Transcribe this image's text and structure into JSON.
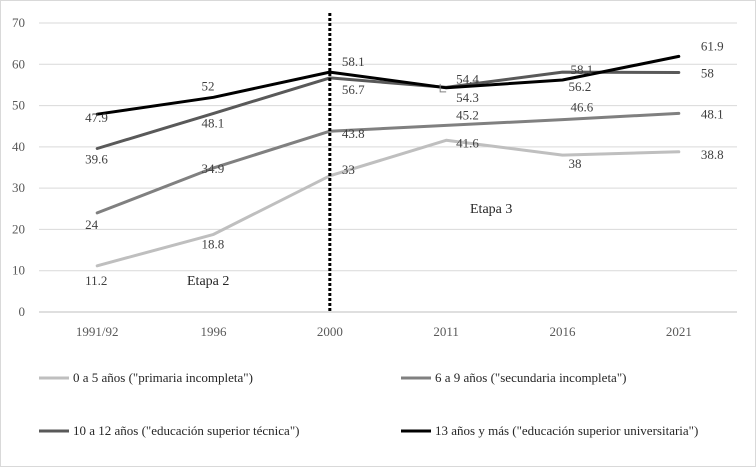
{
  "chart_data": {
    "type": "line",
    "title": "",
    "xlabel": "",
    "ylabel": "",
    "categories": [
      "1991/92",
      "1996",
      "2000",
      "2011",
      "2016",
      "2021"
    ],
    "ylim": [
      0,
      70
    ],
    "yticks": [
      0,
      10,
      20,
      30,
      40,
      50,
      60,
      70
    ],
    "grid": "horizontal",
    "legend_position": "bottom",
    "series": [
      {
        "name": "0 a 5 años (\"primaria incompleta\")",
        "color": "#bfbfbf",
        "values": [
          11.2,
          18.8,
          33,
          41.6,
          38,
          38.8
        ],
        "labels": [
          "11.2",
          "18.8",
          "33",
          "41.6",
          "38",
          "38.8"
        ]
      },
      {
        "name": "6 a 9 años (\"secundaria incompleta\")",
        "color": "#808080",
        "values": [
          24,
          34.9,
          43.8,
          45.2,
          46.6,
          48.1
        ],
        "labels": [
          "24",
          "34.9",
          "43.8",
          "45.2",
          "46.6",
          "48.1"
        ]
      },
      {
        "name": "10 a 12 años (\"educación superior técnica\")",
        "color": "#595959",
        "values": [
          39.6,
          48.1,
          56.7,
          54.4,
          58.1,
          58
        ],
        "labels": [
          "39.6",
          "48.1",
          "56.7",
          "54.4",
          "58.1",
          "58"
        ]
      },
      {
        "name": "13 años y más (\"educación superior universitaria\")",
        "color": "#000000",
        "values": [
          47.9,
          52,
          58.1,
          54.3,
          56.2,
          61.9
        ],
        "labels": [
          "47.9",
          "52",
          "58.1",
          "54.3",
          "56.2",
          "61.9"
        ]
      }
    ],
    "annotations": [
      {
        "text": "Etapa 2"
      },
      {
        "text": "Etapa 3"
      }
    ],
    "divider": {
      "at_category": "2000",
      "style": "dotted"
    }
  }
}
